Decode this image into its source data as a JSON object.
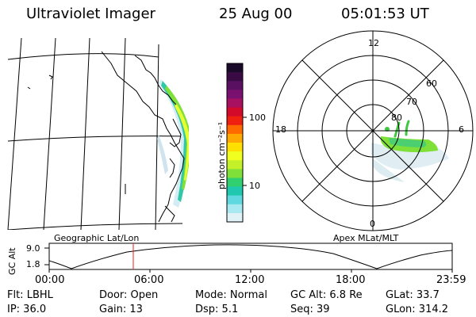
{
  "header": {
    "title": "Ultraviolet Imager",
    "date": "25 Aug 00",
    "time": "05:01:53 UT"
  },
  "colorbar": {
    "unit_label": "photon cm⁻²s⁻¹",
    "ticks": [
      "100",
      "10"
    ],
    "colors": [
      "#1a0a2a",
      "#3a0a44",
      "#5a1060",
      "#7a1070",
      "#a81060",
      "#d40a2a",
      "#f02010",
      "#ff6a00",
      "#ffa800",
      "#ffe000",
      "#f0ff20",
      "#c4f02a",
      "#7ee038",
      "#30d070",
      "#20c8b0",
      "#60d8e0",
      "#a8e8f0",
      "#e0f2f6"
    ]
  },
  "panels": {
    "left_caption": "Geographic Lat/Lon",
    "right_caption": "Apex MLat/MLT"
  },
  "polar": {
    "mlt_labels": {
      "top": "12",
      "left": "18",
      "right": "6",
      "bottom": "0"
    },
    "mlat_labels": [
      "60",
      "70",
      "80"
    ]
  },
  "altitude_plot": {
    "ylabel": "GC Alt",
    "ymax_label": "9.0",
    "ymin_label": "1.8",
    "x_ticks": [
      "00:00",
      "06:00",
      "12:00",
      "18:00",
      "23:59"
    ],
    "marker_color": "#e02020"
  },
  "footer": {
    "row1": {
      "flt": "Flt: LBHL",
      "door": "Door: Open",
      "mode": "Mode: Normal",
      "gc_alt": "GC Alt: 6.8 Re",
      "glat": "GLat:  33.7"
    },
    "row2": {
      "ip": "IP: 36.0",
      "gain": "Gain: 13",
      "dsp": "Dsp:     5.1",
      "seq": "Seq: 39",
      "glon": "GLon: 314.2"
    }
  }
}
